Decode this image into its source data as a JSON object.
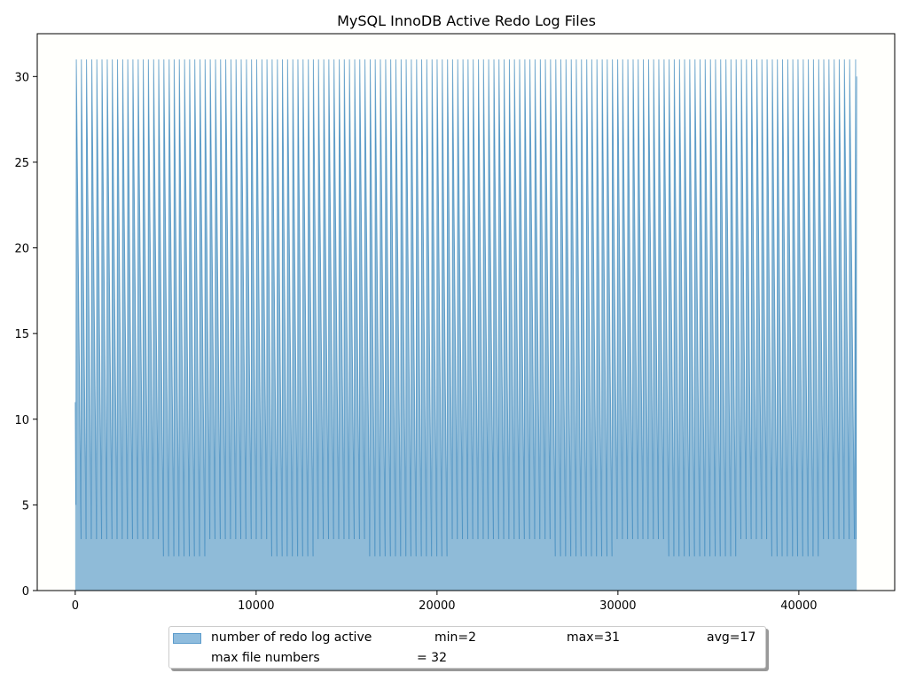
{
  "chart_data": {
    "type": "area",
    "title": "MySQL InnoDB Active Redo Log Files",
    "xlabel": "",
    "ylabel": "",
    "xlim": [
      -2100,
      45300
    ],
    "ylim": [
      0,
      32.5
    ],
    "x_ticks": [
      0,
      10000,
      20000,
      30000,
      40000
    ],
    "y_ticks": [
      0,
      5,
      10,
      15,
      20,
      25,
      30
    ],
    "grid": false,
    "legend_position": "lower-center",
    "series": [
      {
        "name": "number of redo log active",
        "color": "#1f77b4",
        "fill_alpha": 0.5,
        "description": "sawtooth oscillating between a floor of about 2-3 and a peak of 31, cycling roughly every 280 samples over x = 0 to 43200",
        "x_start": 0,
        "x_end": 43200,
        "approx_period": 285,
        "peak": 31,
        "floor_segments": [
          {
            "x_from": 0,
            "x_to": 1000,
            "floor": 3
          },
          {
            "x_from": 1000,
            "x_to": 4500,
            "floor": 3
          },
          {
            "x_from": 4500,
            "x_to": 7000,
            "floor": 2
          },
          {
            "x_from": 7000,
            "x_to": 10500,
            "floor": 3
          },
          {
            "x_from": 10500,
            "x_to": 13000,
            "floor": 2
          },
          {
            "x_from": 13000,
            "x_to": 16000,
            "floor": 3
          },
          {
            "x_from": 16000,
            "x_to": 18500,
            "floor": 2
          },
          {
            "x_from": 18500,
            "x_to": 20500,
            "floor": 2
          },
          {
            "x_from": 20500,
            "x_to": 25500,
            "floor": 3
          },
          {
            "x_from": 25500,
            "x_to": 26000,
            "floor": 3
          },
          {
            "x_from": 26000,
            "x_to": 29500,
            "floor": 2
          },
          {
            "x_from": 29500,
            "x_to": 32500,
            "floor": 3
          },
          {
            "x_from": 32500,
            "x_to": 36500,
            "floor": 2
          },
          {
            "x_from": 36500,
            "x_to": 38000,
            "floor": 3
          },
          {
            "x_from": 38000,
            "x_to": 41000,
            "floor": 2
          },
          {
            "x_from": 41000,
            "x_to": 43200,
            "floor": 3
          }
        ],
        "start_value": 11,
        "end_value": 30,
        "stats": {
          "min": 2,
          "max": 31,
          "avg": 17
        }
      }
    ]
  },
  "legend": {
    "row1": {
      "label": "number of redo log active",
      "min": "min=2",
      "max": "max=31",
      "avg": "avg=17"
    },
    "row2": {
      "label": "max file numbers",
      "value": "= 32"
    }
  }
}
